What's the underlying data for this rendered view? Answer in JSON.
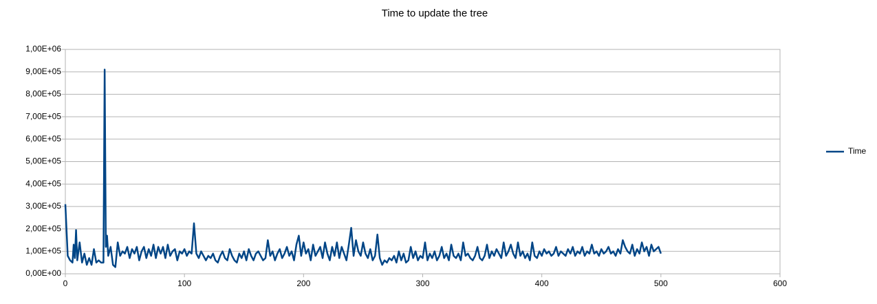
{
  "chart_data": {
    "type": "line",
    "title": "Time to update the tree",
    "x": [
      0,
      2,
      4,
      6,
      7,
      8,
      9,
      10,
      12,
      14,
      16,
      18,
      20,
      22,
      24,
      26,
      28,
      30,
      32,
      33,
      34,
      35,
      36,
      38,
      40,
      42,
      44,
      46,
      48,
      50,
      52,
      54,
      56,
      58,
      60,
      62,
      64,
      66,
      68,
      70,
      72,
      74,
      76,
      78,
      80,
      82,
      84,
      86,
      88,
      90,
      92,
      94,
      96,
      98,
      100,
      102,
      104,
      106,
      108,
      110,
      112,
      114,
      116,
      118,
      120,
      122,
      124,
      126,
      128,
      130,
      132,
      134,
      136,
      138,
      140,
      142,
      144,
      146,
      148,
      150,
      152,
      154,
      156,
      158,
      160,
      162,
      164,
      166,
      168,
      170,
      172,
      174,
      176,
      178,
      180,
      182,
      184,
      186,
      188,
      190,
      192,
      194,
      196,
      198,
      200,
      202,
      204,
      206,
      208,
      210,
      212,
      214,
      216,
      218,
      220,
      222,
      224,
      226,
      228,
      230,
      232,
      234,
      236,
      238,
      240,
      242,
      244,
      246,
      248,
      250,
      252,
      254,
      256,
      258,
      260,
      262,
      264,
      266,
      268,
      270,
      272,
      274,
      276,
      278,
      280,
      282,
      284,
      286,
      288,
      290,
      292,
      294,
      296,
      298,
      300,
      302,
      304,
      306,
      308,
      310,
      312,
      314,
      316,
      318,
      320,
      322,
      324,
      326,
      328,
      330,
      332,
      334,
      336,
      338,
      340,
      342,
      344,
      346,
      348,
      350,
      352,
      354,
      356,
      358,
      360,
      362,
      364,
      366,
      368,
      370,
      372,
      374,
      376,
      378,
      380,
      382,
      384,
      386,
      388,
      390,
      392,
      394,
      396,
      398,
      400,
      402,
      404,
      406,
      408,
      410,
      412,
      414,
      416,
      418,
      420,
      422,
      424,
      426,
      428,
      430,
      432,
      434,
      436,
      438,
      440,
      442,
      444,
      446,
      448,
      450,
      452,
      454,
      456,
      458,
      460,
      462,
      464,
      466,
      468,
      470,
      472,
      474,
      476,
      478,
      480,
      482,
      484,
      486,
      488,
      490,
      492,
      494,
      496,
      498,
      500
    ],
    "series": [
      {
        "name": "Time",
        "color": "#004586",
        "values": [
          310000,
          80000,
          60000,
          50000,
          130000,
          70000,
          195000,
          60000,
          140000,
          50000,
          90000,
          40000,
          70000,
          40000,
          110000,
          50000,
          60000,
          50000,
          50000,
          910000,
          120000,
          170000,
          80000,
          120000,
          40000,
          30000,
          140000,
          80000,
          100000,
          90000,
          120000,
          70000,
          110000,
          90000,
          120000,
          60000,
          100000,
          120000,
          70000,
          110000,
          80000,
          130000,
          70000,
          120000,
          90000,
          120000,
          70000,
          130000,
          80000,
          100000,
          110000,
          60000,
          100000,
          90000,
          110000,
          80000,
          100000,
          90000,
          225000,
          90000,
          70000,
          100000,
          80000,
          60000,
          80000,
          70000,
          90000,
          60000,
          50000,
          80000,
          100000,
          70000,
          60000,
          110000,
          80000,
          60000,
          50000,
          90000,
          70000,
          100000,
          60000,
          110000,
          80000,
          60000,
          90000,
          100000,
          80000,
          60000,
          70000,
          150000,
          80000,
          100000,
          60000,
          90000,
          110000,
          70000,
          90000,
          120000,
          80000,
          100000,
          60000,
          130000,
          170000,
          80000,
          140000,
          90000,
          110000,
          60000,
          130000,
          80000,
          100000,
          120000,
          70000,
          140000,
          90000,
          60000,
          120000,
          80000,
          140000,
          70000,
          120000,
          90000,
          60000,
          130000,
          205000,
          80000,
          150000,
          100000,
          80000,
          140000,
          90000,
          70000,
          110000,
          60000,
          80000,
          175000,
          70000,
          40000,
          60000,
          50000,
          70000,
          60000,
          80000,
          50000,
          100000,
          60000,
          90000,
          50000,
          60000,
          120000,
          70000,
          100000,
          60000,
          80000,
          70000,
          140000,
          60000,
          90000,
          70000,
          100000,
          60000,
          80000,
          120000,
          70000,
          90000,
          60000,
          130000,
          80000,
          70000,
          90000,
          60000,
          140000,
          80000,
          90000,
          70000,
          60000,
          80000,
          120000,
          70000,
          60000,
          80000,
          130000,
          70000,
          100000,
          80000,
          110000,
          90000,
          70000,
          140000,
          80000,
          100000,
          130000,
          90000,
          70000,
          140000,
          80000,
          100000,
          70000,
          90000,
          60000,
          140000,
          80000,
          70000,
          100000,
          80000,
          110000,
          90000,
          100000,
          80000,
          90000,
          120000,
          80000,
          100000,
          90000,
          80000,
          110000,
          90000,
          120000,
          80000,
          100000,
          90000,
          120000,
          80000,
          100000,
          90000,
          130000,
          90000,
          100000,
          80000,
          110000,
          90000,
          100000,
          120000,
          90000,
          100000,
          80000,
          110000,
          90000,
          150000,
          120000,
          100000,
          90000,
          130000,
          80000,
          110000,
          90000,
          140000,
          100000,
          120000,
          80000,
          130000,
          100000,
          110000,
          120000,
          90000
        ]
      }
    ],
    "xlim": [
      0,
      600
    ],
    "xticks": [
      0,
      100,
      200,
      300,
      400,
      500,
      600
    ],
    "ylim": [
      0,
      1000000
    ],
    "yticks": [
      {
        "value": 0,
        "label": "0,00E+00"
      },
      {
        "value": 100000,
        "label": "1,00E+05"
      },
      {
        "value": 200000,
        "label": "2,00E+05"
      },
      {
        "value": 300000,
        "label": "3,00E+05"
      },
      {
        "value": 400000,
        "label": "4,00E+05"
      },
      {
        "value": 500000,
        "label": "5,00E+05"
      },
      {
        "value": 600000,
        "label": "6,00E+05"
      },
      {
        "value": 700000,
        "label": "7,00E+05"
      },
      {
        "value": 800000,
        "label": "8,00E+05"
      },
      {
        "value": 900000,
        "label": "9,00E+05"
      },
      {
        "value": 1000000,
        "label": "1,00E+06"
      }
    ],
    "grid": true,
    "legend": "right"
  }
}
